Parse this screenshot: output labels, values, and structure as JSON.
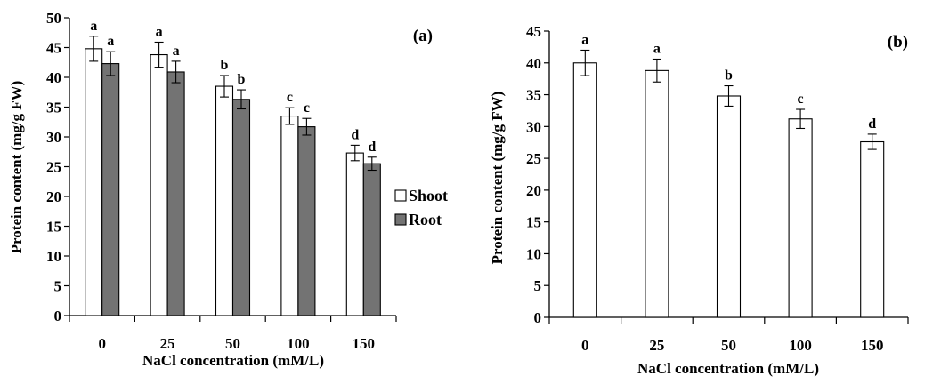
{
  "chart_data": [
    {
      "panel": "(a)",
      "type": "bar",
      "categories": [
        "0",
        "25",
        "50",
        "100",
        "150"
      ],
      "xlabel": "NaCl concentration (mM/L)",
      "ylabel": "Protein content (mg/g FW)",
      "ylim": [
        0,
        50
      ],
      "yticks": [
        0,
        5,
        10,
        15,
        20,
        25,
        30,
        35,
        40,
        45,
        50
      ],
      "grid": false,
      "legend": "right",
      "series": [
        {
          "name": "Shoot",
          "color": "#ffffff",
          "values": [
            44.8,
            43.8,
            38.5,
            33.5,
            27.3
          ],
          "errors": [
            2.1,
            2.1,
            1.8,
            1.4,
            1.3
          ],
          "labels": [
            "a",
            "a",
            "b",
            "c",
            "d"
          ]
        },
        {
          "name": "Root",
          "color": "#737373",
          "values": [
            42.3,
            40.9,
            36.3,
            31.7,
            25.5
          ],
          "errors": [
            2.0,
            1.8,
            1.6,
            1.4,
            1.1
          ],
          "labels": [
            "a",
            "a",
            "b",
            "c",
            "d"
          ]
        }
      ]
    },
    {
      "panel": "(b)",
      "type": "bar",
      "categories": [
        "0",
        "25",
        "50",
        "100",
        "150"
      ],
      "xlabel": "NaCl concentration (mM/L)",
      "ylabel": "Protein content (mg/g FW)",
      "ylim": [
        0,
        45
      ],
      "yticks": [
        0,
        5,
        10,
        15,
        20,
        25,
        30,
        35,
        40,
        45
      ],
      "grid": false,
      "series": [
        {
          "color": "#ffffff",
          "values": [
            40.0,
            38.8,
            34.8,
            31.2,
            27.6
          ],
          "errors": [
            2.0,
            1.8,
            1.6,
            1.5,
            1.2
          ],
          "labels": [
            "a",
            "a",
            "b",
            "c",
            "d"
          ]
        }
      ]
    }
  ]
}
